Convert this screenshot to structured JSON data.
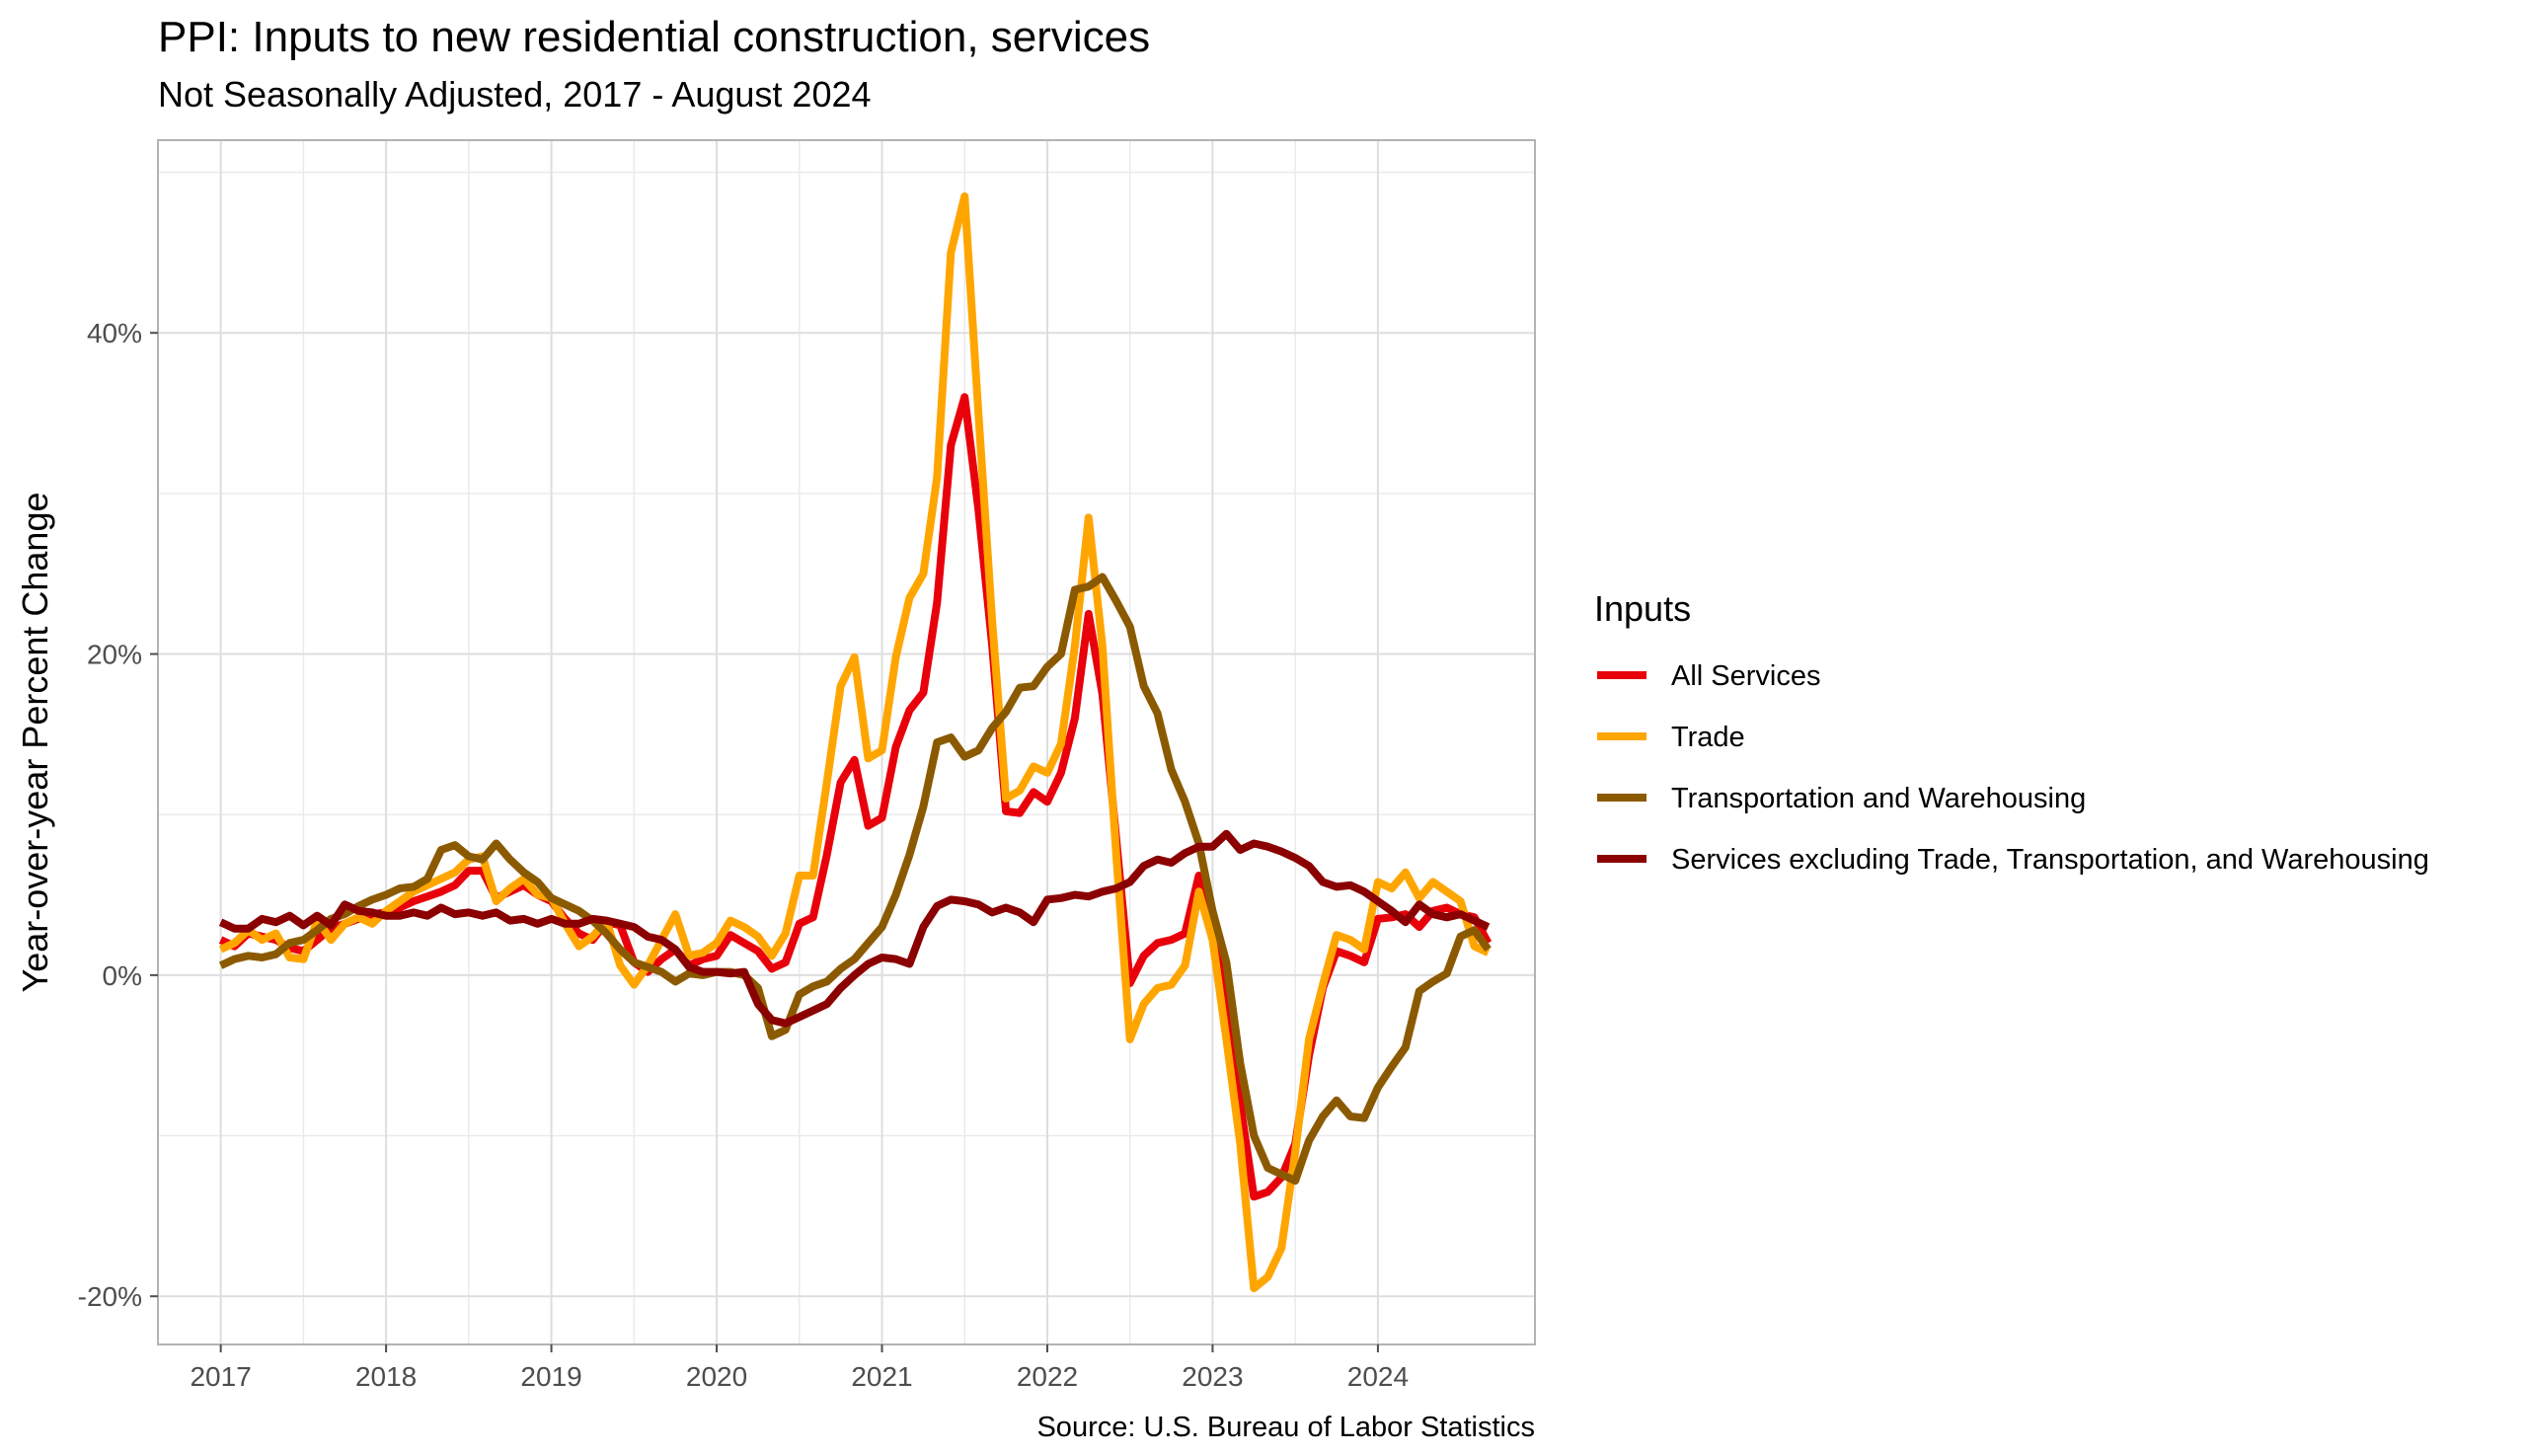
{
  "title": "PPI: Inputs to new residential construction, services",
  "subtitle": "Not Seasonally Adjusted, 2017 - August 2024",
  "caption": "Source: U.S. Bureau of Labor Statistics",
  "chart_data": {
    "type": "line",
    "ylabel": "Year-over-year Percent Change",
    "xlabel": "",
    "xlim": [
      2016.62,
      2024.95
    ],
    "ylim": [
      -23,
      52
    ],
    "x_ticks": [
      2017,
      2018,
      2019,
      2020,
      2021,
      2022,
      2023,
      2024
    ],
    "x_tick_labels": [
      "2017",
      "2018",
      "2019",
      "2020",
      "2021",
      "2022",
      "2023",
      "2024"
    ],
    "y_ticks": [
      -20,
      0,
      20,
      40
    ],
    "y_tick_labels": [
      "-20%",
      "0%",
      "20%",
      "40%"
    ],
    "y_minor_ticks": [
      -10,
      10,
      30,
      50
    ],
    "grid": true,
    "legend": {
      "title": "Inputs",
      "placement": "right"
    },
    "x_start": "2017-01",
    "x_step": "1 month",
    "series": [
      {
        "name": "All Services",
        "color": "#e8000b",
        "values": [
          2.2,
          1.8,
          2.6,
          2.4,
          2.2,
          1.7,
          1.5,
          2.2,
          2.9,
          3.2,
          3.5,
          3.8,
          3.9,
          4.2,
          4.6,
          4.9,
          5.2,
          5.6,
          6.5,
          6.5,
          4.8,
          5.2,
          5.6,
          5.0,
          4.6,
          3.5,
          2.6,
          2.2,
          3.3,
          3.1,
          0.8,
          0.2,
          1.0,
          1.6,
          0.6,
          1.0,
          1.2,
          2.5,
          2.0,
          1.5,
          0.4,
          0.8,
          3.2,
          3.6,
          7.5,
          12.0,
          13.4,
          9.3,
          9.8,
          14.2,
          16.5,
          17.6,
          23.2,
          33.0,
          36.0,
          29.0,
          20.5,
          10.2,
          10.1,
          11.4,
          10.8,
          12.6,
          16.0,
          22.5,
          17.5,
          8.5,
          -0.5,
          1.2,
          2.0,
          2.2,
          2.6,
          6.2,
          3.8,
          -2.0,
          -8.0,
          -13.8,
          -13.5,
          -12.6,
          -10.5,
          -5.0,
          -0.8,
          1.5,
          1.2,
          0.8,
          3.5,
          3.6,
          3.8,
          3.0,
          4.0,
          4.2,
          3.8,
          3.6,
          2.0
        ]
      },
      {
        "name": "Trade",
        "color": "#ffa500",
        "values": [
          1.6,
          2.0,
          2.8,
          2.2,
          2.6,
          1.1,
          1.0,
          3.4,
          2.2,
          3.2,
          3.6,
          3.2,
          4.0,
          4.6,
          5.2,
          5.6,
          6.0,
          6.4,
          7.2,
          7.4,
          4.6,
          5.4,
          6.0,
          5.0,
          4.8,
          3.2,
          1.8,
          2.4,
          3.4,
          0.6,
          -0.6,
          0.6,
          2.2,
          3.8,
          1.2,
          1.4,
          2.0,
          3.4,
          3.0,
          2.4,
          1.2,
          2.6,
          6.2,
          6.2,
          12.0,
          18.0,
          19.8,
          13.5,
          14.0,
          19.8,
          23.5,
          25.0,
          31.0,
          45.0,
          48.5,
          35.0,
          22.0,
          11.0,
          11.5,
          13.0,
          12.6,
          14.4,
          20.5,
          28.5,
          20.5,
          7.5,
          -4.0,
          -1.8,
          -0.8,
          -0.6,
          0.6,
          5.2,
          2.2,
          -4.0,
          -10.5,
          -19.5,
          -18.8,
          -17.0,
          -11.0,
          -4.0,
          -0.6,
          2.5,
          2.2,
          1.6,
          5.8,
          5.4,
          6.4,
          4.8,
          5.8,
          5.2,
          4.6,
          1.8,
          1.4
        ]
      },
      {
        "name": "Transportation and Warehousing",
        "color": "#8b5a00",
        "values": [
          0.6,
          1.0,
          1.2,
          1.1,
          1.3,
          2.0,
          2.2,
          2.8,
          3.5,
          3.8,
          4.3,
          4.7,
          5.0,
          5.4,
          5.5,
          6.0,
          7.8,
          8.1,
          7.4,
          7.2,
          8.2,
          7.2,
          6.4,
          5.8,
          4.8,
          4.4,
          4.0,
          3.4,
          2.6,
          1.6,
          0.8,
          0.5,
          0.2,
          -0.4,
          0.1,
          0.0,
          0.2,
          0.2,
          0.0,
          -0.8,
          -3.8,
          -3.4,
          -1.2,
          -0.7,
          -0.4,
          0.4,
          1.0,
          2.0,
          3.0,
          5.0,
          7.5,
          10.5,
          14.5,
          14.8,
          13.6,
          14.0,
          15.4,
          16.4,
          17.9,
          18.0,
          19.2,
          20.0,
          24.0,
          24.2,
          24.8,
          23.3,
          21.7,
          18.0,
          16.3,
          12.8,
          10.8,
          8.2,
          4.0,
          0.8,
          -5.5,
          -10.0,
          -12.0,
          -12.4,
          -12.8,
          -10.3,
          -8.8,
          -7.8,
          -8.8,
          -8.9,
          -7.0,
          -5.7,
          -4.5,
          -1.0,
          -0.4,
          0.1,
          2.4,
          2.8,
          1.6
        ]
      },
      {
        "name": "Services excluding Trade, Transportation, and Warehousing",
        "color": "#8b0000",
        "values": [
          3.3,
          2.9,
          2.9,
          3.5,
          3.3,
          3.7,
          3.1,
          3.7,
          3.1,
          4.4,
          4.0,
          3.9,
          3.7,
          3.7,
          3.9,
          3.7,
          4.2,
          3.8,
          3.9,
          3.7,
          3.9,
          3.4,
          3.5,
          3.2,
          3.5,
          3.2,
          3.2,
          3.5,
          3.4,
          3.2,
          3.0,
          2.4,
          2.2,
          1.6,
          0.5,
          0.2,
          0.2,
          0.1,
          0.2,
          -1.8,
          -2.8,
          -3.0,
          -2.6,
          -2.2,
          -1.8,
          -0.8,
          0.0,
          0.7,
          1.1,
          1.0,
          0.7,
          3.0,
          4.3,
          4.7,
          4.6,
          4.4,
          3.9,
          4.2,
          3.9,
          3.3,
          4.7,
          4.8,
          5.0,
          4.9,
          5.2,
          5.4,
          5.8,
          6.8,
          7.2,
          7.0,
          7.6,
          8.0,
          8.0,
          8.8,
          7.8,
          8.2,
          8.0,
          7.7,
          7.3,
          6.8,
          5.8,
          5.5,
          5.6,
          5.2,
          4.6,
          4.0,
          3.3,
          4.4,
          3.8,
          3.6,
          3.8,
          3.4,
          3.0
        ]
      }
    ]
  }
}
